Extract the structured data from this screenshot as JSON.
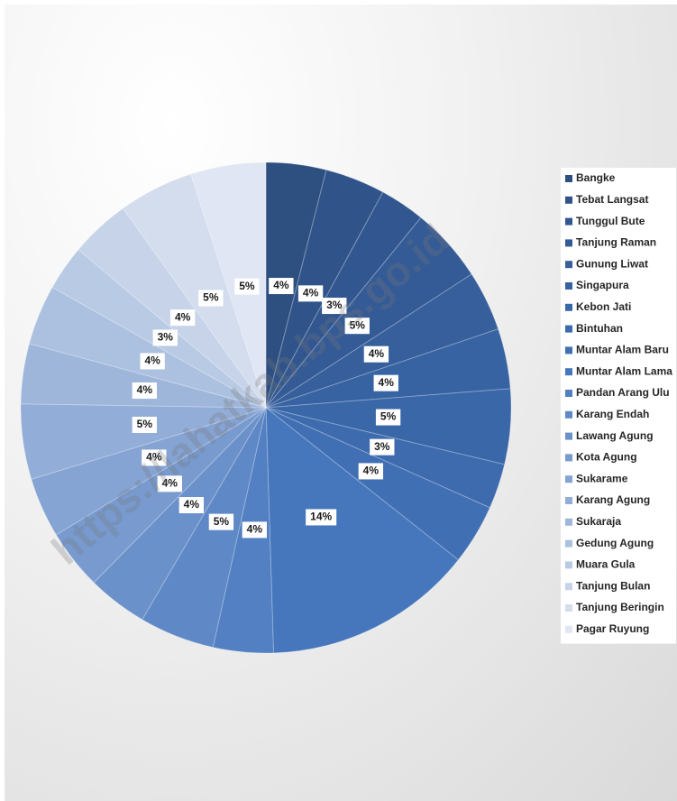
{
  "chart_data": {
    "type": "pie",
    "watermark": "https://lahatkab.bps.go.id",
    "categories": [
      "Bangke",
      "Tebat Langsat",
      "Tunggul Bute",
      "Tanjung Raman",
      "Gunung Liwat",
      "Singapura",
      "Kebon Jati",
      "Bintuhan",
      "Muntar Alam Baru",
      "Muntar Alam Lama",
      "Pandan Arang Ulu",
      "Karang Endah",
      "Lawang Agung",
      "Kota Agung",
      "Sukarame",
      "Karang Agung",
      "Sukaraja",
      "Gedung Agung",
      "Muara Gula",
      "Tanjung Bulan",
      "Tanjung Beringin",
      "Pagar Ruyung"
    ],
    "values": [
      4,
      4,
      3,
      5,
      4,
      4,
      5,
      3,
      4,
      14,
      4,
      5,
      4,
      4,
      4,
      5,
      4,
      4,
      3,
      4,
      5,
      5
    ],
    "value_labels": [
      "4%",
      "4%",
      "3%",
      "5%",
      "4%",
      "4%",
      "5%",
      "3%",
      "4%",
      "14%",
      "4%",
      "5%",
      "4%",
      "4%",
      "4%",
      "5%",
      "4%",
      "4%",
      "3%",
      "4%",
      "5%",
      "5%"
    ],
    "colors": [
      "#2e5080",
      "#30548a",
      "#325790",
      "#345b96",
      "#365f9c",
      "#3863a2",
      "#3a67a8",
      "#3d6bae",
      "#406fb4",
      "#4677bd",
      "#5380c2",
      "#5f88c6",
      "#6b91ca",
      "#789acf",
      "#85a3d3",
      "#92add7",
      "#9fb6db",
      "#acc0e0",
      "#b9cae4",
      "#c6d3e9",
      "#d3ddee",
      "#e0e6f3"
    ],
    "legend": "right"
  }
}
